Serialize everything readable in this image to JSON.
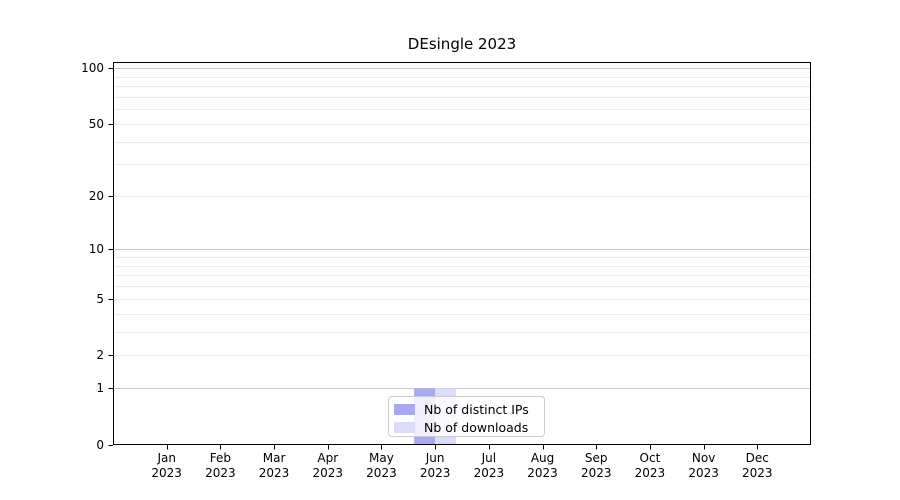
{
  "chart_data": {
    "type": "bar",
    "title": "DEsingle 2023",
    "categories": [
      "Jan",
      "Feb",
      "Mar",
      "Apr",
      "May",
      "Jun",
      "Jul",
      "Aug",
      "Sep",
      "Oct",
      "Nov",
      "Dec"
    ],
    "category_year": "2023",
    "series": [
      {
        "name": "Nb of distinct IPs",
        "color": "#a9a9ef",
        "values": [
          0,
          0,
          0,
          0,
          0,
          1,
          0,
          0,
          0,
          0,
          0,
          0
        ]
      },
      {
        "name": "Nb of downloads",
        "color": "#dcdcf8",
        "values": [
          0,
          0,
          0,
          0,
          0,
          1,
          0,
          0,
          0,
          0,
          0,
          0
        ]
      }
    ],
    "y_axis": {
      "scale": "log10(value+1)",
      "tick_values": [
        0,
        1,
        2,
        5,
        10,
        20,
        50,
        100
      ],
      "major_gridlines": [
        1,
        10,
        100
      ],
      "minor_gridlines": [
        2,
        3,
        4,
        5,
        6,
        7,
        8,
        9,
        20,
        30,
        40,
        50,
        60,
        70,
        80,
        90
      ],
      "max": 107.7
    },
    "legend": {
      "position": "bottom-center"
    },
    "colors": {
      "axis": "#000000",
      "major_grid": "#c9c9c9",
      "minor_grid": "#ececec",
      "background": "#ffffff"
    }
  }
}
